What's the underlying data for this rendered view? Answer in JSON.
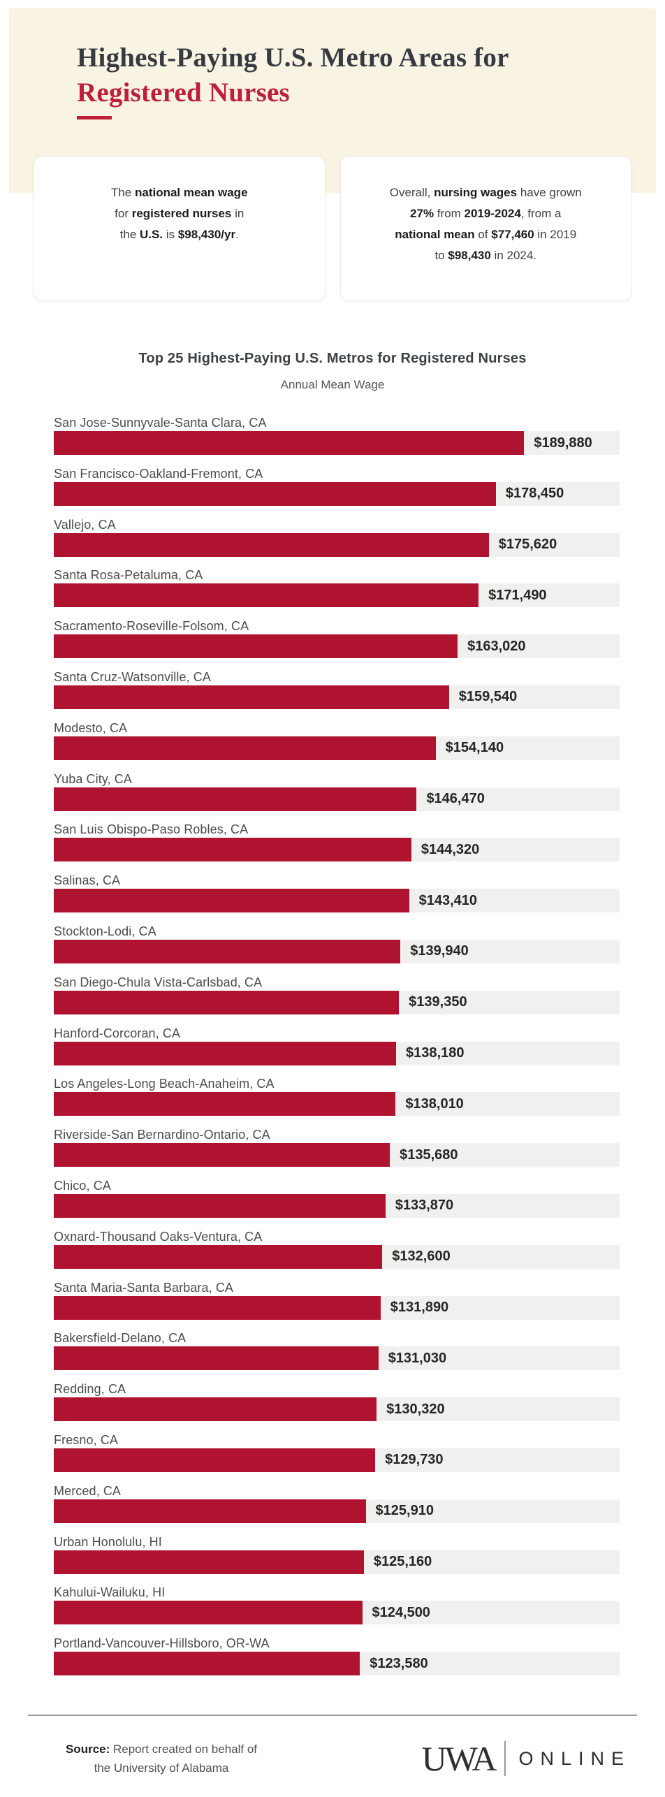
{
  "header": {
    "title_line1": "Highest-Paying U.S. Metro Areas for",
    "title_line2": "Registered Nurses",
    "panel_bg": "#f8f3e2",
    "accent_color": "#bf1e3a"
  },
  "stat_cards": [
    {
      "lines": [
        [
          [
            "The ",
            0
          ],
          [
            "national mean wage",
            1
          ]
        ],
        [
          [
            "for ",
            0
          ],
          [
            "registered nurses",
            1
          ],
          [
            " in",
            0
          ]
        ],
        [
          [
            "the ",
            0
          ],
          [
            "U.S.",
            1
          ],
          [
            " is ",
            0
          ],
          [
            "$98,430/yr",
            1
          ],
          [
            ".",
            0
          ]
        ]
      ]
    },
    {
      "lines": [
        [
          [
            "Overall, ",
            0
          ],
          [
            "nursing wages",
            1
          ],
          [
            " have grown",
            0
          ]
        ],
        [
          [
            "27%",
            1
          ],
          [
            " from ",
            0
          ],
          [
            "2019-2024",
            1
          ],
          [
            ", from a",
            0
          ]
        ],
        [
          [
            "national mean",
            1
          ],
          [
            " of ",
            0
          ],
          [
            "$77,460",
            1
          ],
          [
            " in 2019",
            0
          ]
        ],
        [
          [
            "to ",
            0
          ],
          [
            "$98,430",
            1
          ],
          [
            " in 2024.",
            0
          ]
        ]
      ]
    }
  ],
  "chart_data": {
    "type": "bar",
    "orientation": "horizontal",
    "title": "Top 25 Highest-Paying U.S. Metros for Registered Nurses",
    "subtitle": "Annual Mean Wage",
    "value_unit": "USD per year",
    "grid": false,
    "legend": false,
    "bar_color": "#b01330",
    "track_color": "#f0f0ee",
    "scale_max": 228400,
    "categories": [
      "San Jose-Sunnyvale-Santa Clara, CA",
      "San Francisco-Oakland-Fremont, CA",
      "Vallejo, CA",
      "Santa Rosa-Petaluma, CA",
      "Sacramento-Roseville-Folsom, CA",
      "Santa Cruz-Watsonville, CA",
      "Modesto, CA",
      "Yuba City, CA",
      "San Luis Obispo-Paso Robles, CA",
      "Salinas, CA",
      "Stockton-Lodi, CA",
      "San Diego-Chula Vista-Carlsbad, CA",
      "Hanford-Corcoran, CA",
      "Los Angeles-Long Beach-Anaheim, CA",
      "Riverside-San Bernardino-Ontario, CA",
      "Chico, CA",
      "Oxnard-Thousand Oaks-Ventura, CA",
      "Santa Maria-Santa Barbara, CA",
      "Bakersfield-Delano, CA",
      "Redding, CA",
      "Fresno, CA",
      "Merced, CA",
      "Urban Honolulu, HI",
      "Kahului-Wailuku, HI",
      "Portland-Vancouver-Hillsboro, OR-WA"
    ],
    "values": [
      189880,
      178450,
      175620,
      171490,
      163020,
      159540,
      154140,
      146470,
      144320,
      143410,
      139940,
      139350,
      138180,
      138010,
      135680,
      133870,
      132600,
      131890,
      131030,
      130320,
      129730,
      125910,
      125160,
      124500,
      123580
    ],
    "value_labels": [
      "$189,880",
      "$178,450",
      "$175,620",
      "$171,490",
      "$163,020",
      "$159,540",
      "$154,140",
      "$146,470",
      "$144,320",
      "$143,410",
      "$139,940",
      "$139,350",
      "$138,180",
      "$138,010",
      "$135,680",
      "$133,870",
      "$132,600",
      "$131,890",
      "$131,030",
      "$130,320",
      "$129,730",
      "$125,910",
      "$125,160",
      "$124,500",
      "$123,580"
    ]
  },
  "footer": {
    "source_label": "Source:",
    "source_rest": " Report created on behalf of",
    "source_line2": "the University of Alabama",
    "logo_wordmark": "UWA",
    "logo_suffix": "ONLINE"
  }
}
